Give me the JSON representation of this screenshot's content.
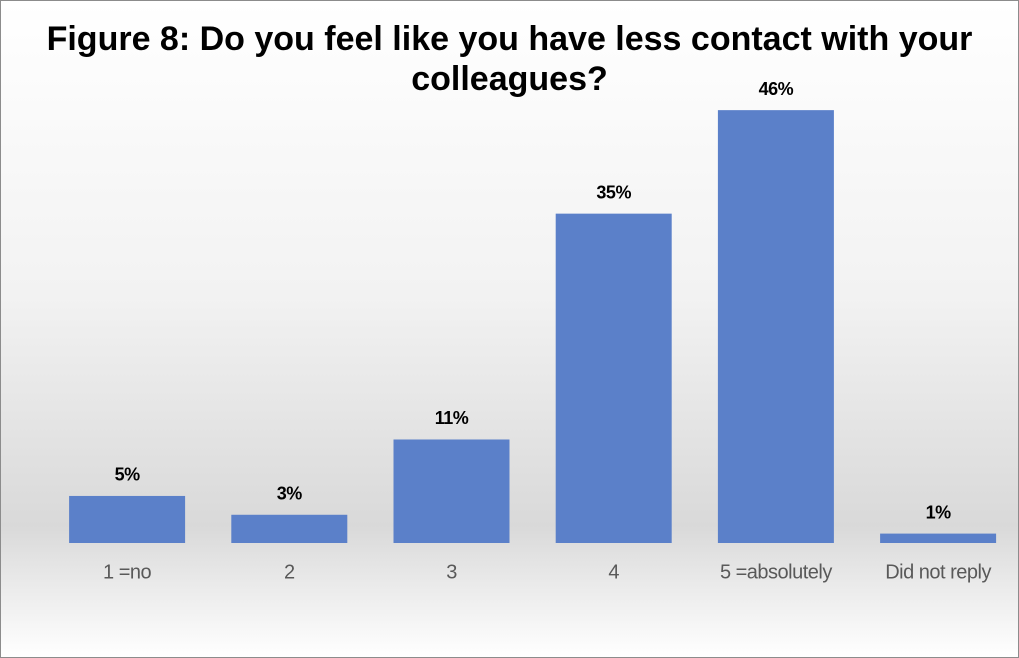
{
  "chart_data": {
    "type": "bar",
    "title": "Figure 8: Do you feel like you have less contact with your colleagues?",
    "categories": [
      "1 =no",
      "2",
      "3",
      "4",
      "5 =absolutely",
      "Did not reply"
    ],
    "values": [
      5,
      3,
      11,
      35,
      46,
      1
    ],
    "value_labels": [
      "5%",
      "3%",
      "11%",
      "35%",
      "46%",
      "1%"
    ],
    "color": "#5b80c9"
  }
}
